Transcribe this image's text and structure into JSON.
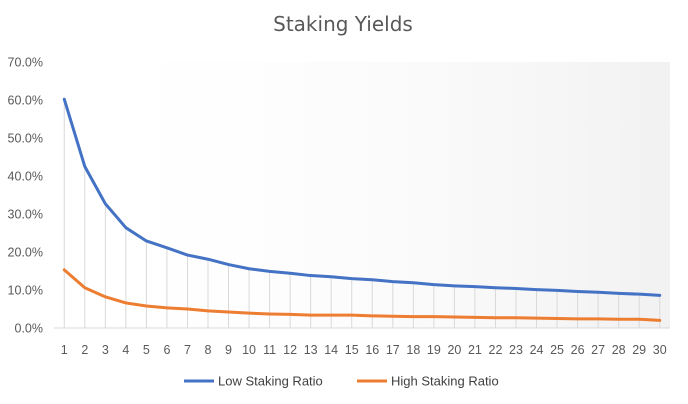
{
  "chart_data": {
    "type": "line",
    "title": "Staking Yields",
    "xlabel": "",
    "ylabel": "",
    "x": [
      1,
      2,
      3,
      4,
      5,
      6,
      7,
      8,
      9,
      10,
      11,
      12,
      13,
      14,
      15,
      16,
      17,
      18,
      19,
      20,
      21,
      22,
      23,
      24,
      25,
      26,
      27,
      28,
      29,
      30
    ],
    "ylim": [
      0,
      70
    ],
    "yticks": [
      "0.0%",
      "10.0%",
      "20.0%",
      "30.0%",
      "40.0%",
      "50.0%",
      "60.0%",
      "70.0%"
    ],
    "grid": false,
    "drop_lines": true,
    "legend_position": "bottom",
    "series": [
      {
        "name": "Low Staking Ratio",
        "color": "#4472C4",
        "values": [
          60.2,
          42.5,
          32.7,
          26.4,
          22.9,
          21.1,
          19.2,
          18.1,
          16.7,
          15.6,
          14.9,
          14.4,
          13.8,
          13.5,
          13.0,
          12.7,
          12.2,
          11.9,
          11.4,
          11.1,
          10.9,
          10.6,
          10.4,
          10.1,
          9.9,
          9.6,
          9.4,
          9.1,
          8.9,
          8.6
        ]
      },
      {
        "name": "High Staking Ratio",
        "color": "#ED7D31",
        "values": [
          15.3,
          10.6,
          8.2,
          6.6,
          5.8,
          5.3,
          5.0,
          4.5,
          4.2,
          3.9,
          3.7,
          3.6,
          3.4,
          3.4,
          3.4,
          3.2,
          3.1,
          3.0,
          3.0,
          2.9,
          2.8,
          2.7,
          2.7,
          2.6,
          2.5,
          2.4,
          2.4,
          2.3,
          2.3,
          2.0
        ]
      }
    ]
  }
}
